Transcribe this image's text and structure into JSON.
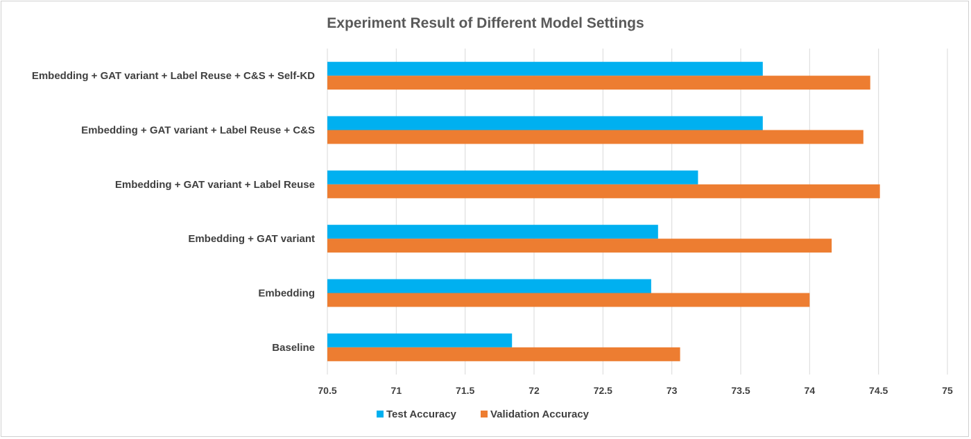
{
  "chart_data": {
    "type": "bar",
    "orientation": "horizontal",
    "title": "Experiment Result of Different Model Settings",
    "categories": [
      "Baseline",
      "Embedding",
      "Embedding + GAT variant",
      "Embedding + GAT variant + Label Reuse",
      "Embedding + GAT variant + Label Reuse + C&S",
      "Embedding + GAT variant + Label Reuse + C&S + Self-KD"
    ],
    "series": [
      {
        "name": "Test Accuracy",
        "color": "#00b0f0",
        "values": [
          71.84,
          72.85,
          72.9,
          73.19,
          73.66,
          73.66
        ]
      },
      {
        "name": "Validation Accuracy",
        "color": "#ed7d31",
        "values": [
          73.06,
          74.0,
          74.16,
          74.51,
          74.39,
          74.44
        ]
      }
    ],
    "xlim": [
      70.5,
      75
    ],
    "xticks": [
      "70.5",
      "71",
      "71.5",
      "72",
      "72.5",
      "73",
      "73.5",
      "74",
      "74.5",
      "75"
    ],
    "grid": true,
    "legend_position": "bottom"
  }
}
